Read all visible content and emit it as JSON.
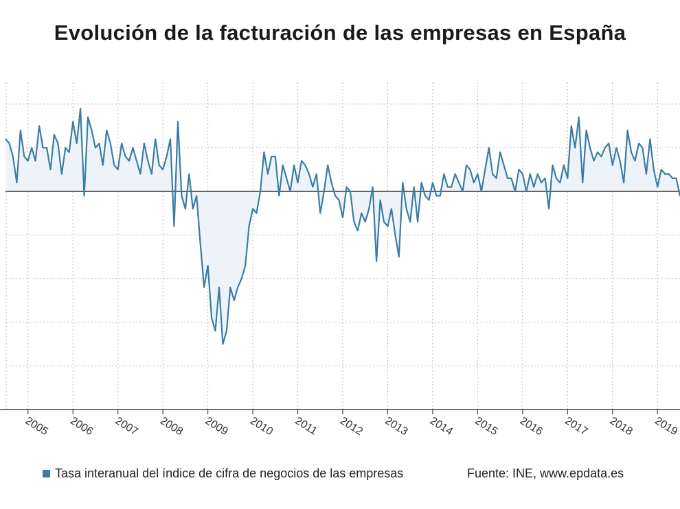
{
  "title": "Evolución de la facturación de las empresas en España",
  "legend_label": "Tasa interanual del índice de cifra de negocios de las empresas",
  "source": "Fuente: INE, www.epdata.es",
  "colors": {
    "line": "#3a7ca5",
    "fill": "#eef3fa",
    "zero": "#333333",
    "grid": "#b8b8b8"
  },
  "chart_data": {
    "type": "area",
    "series": [
      {
        "name": "Tasa interanual del índice de cifra de negocios de las empresas",
        "x_start": "2004-07",
        "frequency": "monthly",
        "values": [
          6,
          5.5,
          4,
          1,
          7,
          4,
          3.5,
          5,
          3.5,
          7.5,
          5,
          5,
          2.5,
          6.5,
          5.5,
          2,
          5,
          4.5,
          8,
          5.5,
          9.5,
          -0.5,
          8.5,
          7,
          5,
          5.5,
          3,
          7,
          5.5,
          3,
          2.5,
          5.5,
          4,
          3.5,
          5,
          3.5,
          2,
          5.5,
          3.5,
          2,
          6,
          3,
          2.5,
          4,
          6,
          -4,
          8,
          -0.5,
          -2,
          2,
          -2,
          -0.5,
          -6,
          -11,
          -8.5,
          -14.5,
          -16,
          -11,
          -17.5,
          -16,
          -11,
          -12.5,
          -11,
          -10,
          -8.5,
          -4,
          -2,
          -2.5,
          0,
          4.5,
          2,
          4,
          4,
          -0.5,
          3,
          1.5,
          0,
          3,
          1,
          3.5,
          3,
          2,
          0.5,
          2,
          -2.5,
          0,
          3,
          1,
          -0.5,
          -1,
          -3,
          0.5,
          0,
          -3.5,
          -4.5,
          -2.5,
          -3.5,
          -2,
          0.5,
          -8,
          -1,
          -3.5,
          -4,
          -2,
          -5,
          -7.5,
          1,
          -2,
          -3.5,
          0.5,
          -3.5,
          1,
          -0.5,
          -1,
          1,
          -0.5,
          -0.5,
          2,
          0.5,
          0.5,
          2,
          1,
          0,
          3,
          2.5,
          1,
          2,
          0,
          2.5,
          5,
          2,
          1.5,
          4.5,
          3,
          1.5,
          1.5,
          0,
          2.5,
          2,
          0,
          2,
          0.5,
          2,
          1,
          1.5,
          -2,
          3,
          1.5,
          1,
          3,
          1.5,
          7.5,
          5,
          8.5,
          1,
          7,
          5,
          3.5,
          4.5,
          4,
          5,
          5.5,
          3,
          5,
          3.5,
          1,
          7,
          4.5,
          3.5,
          5.5,
          5,
          2,
          6,
          2.5,
          0.5,
          2.5,
          2,
          2,
          1.5,
          1.5,
          -0.5,
          2.5,
          0
        ]
      }
    ],
    "x_ticks": [
      "2005",
      "2006",
      "2007",
      "2008",
      "2009",
      "2010",
      "2011",
      "2012",
      "2013",
      "2014",
      "2015",
      "2016",
      "2017",
      "2018",
      "2019"
    ],
    "xlim": [
      "2004-07",
      "2019-07"
    ],
    "ylim": [
      -25,
      12.5
    ],
    "y_gridlines": [
      -25,
      -20,
      -15,
      -10,
      -5,
      0,
      5,
      10
    ],
    "grid": true,
    "legend_position": "bottom-left"
  }
}
